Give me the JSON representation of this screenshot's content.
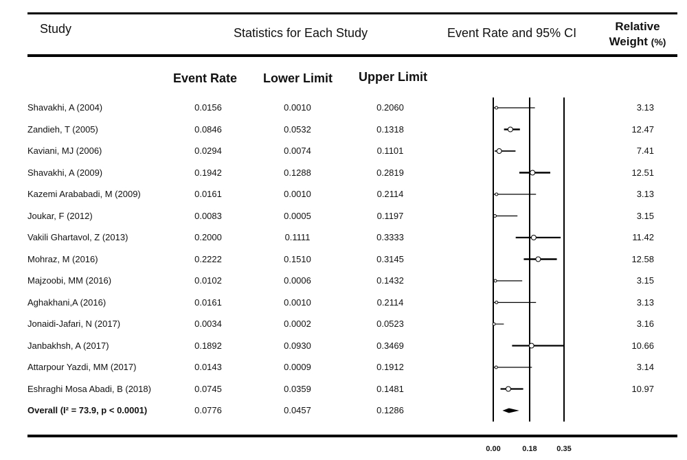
{
  "header": {
    "study": "Study",
    "stats": "Statistics for Each Study",
    "ci": "Event Rate and 95% CI",
    "weight_line1": "Relative",
    "weight_line2": "Weight",
    "weight_unit": "(%)"
  },
  "subheader": {
    "event_rate": "Event Rate",
    "lower_limit": "Lower Limit",
    "upper_limit": "Upper Limit"
  },
  "chart_data": {
    "type": "forest",
    "axis": {
      "xlim": [
        0,
        0.35
      ],
      "ticks": [
        "0.00",
        "0.18",
        "0.35"
      ],
      "tick_values": [
        0,
        0.18,
        0.35
      ],
      "reference_lines": [
        0,
        0.18,
        0.35
      ]
    },
    "studies": [
      {
        "study": "Shavakhi, A  (2004)",
        "event_rate": "0.0156",
        "lower": "0.0010",
        "upper": "0.2060",
        "weight": "3.13",
        "er": 0.0156,
        "lo": 0.001,
        "hi": 0.206
      },
      {
        "study": "Zandieh, T  (2005)",
        "event_rate": "0.0846",
        "lower": "0.0532",
        "upper": "0.1318",
        "weight": "12.47",
        "er": 0.0846,
        "lo": 0.0532,
        "hi": 0.1318
      },
      {
        "study": "Kaviani, MJ  (2006)",
        "event_rate": "0.0294",
        "lower": "0.0074",
        "upper": "0.1101",
        "weight": "7.41",
        "er": 0.0294,
        "lo": 0.0074,
        "hi": 0.1101
      },
      {
        "study": "Shavakhi, A  (2009)",
        "event_rate": "0.1942",
        "lower": "0.1288",
        "upper": "0.2819",
        "weight": "12.51",
        "er": 0.1942,
        "lo": 0.1288,
        "hi": 0.2819
      },
      {
        "study": "Kazemi Arababadi, M  (2009)",
        "event_rate": "0.0161",
        "lower": "0.0010",
        "upper": "0.2114",
        "weight": "3.13",
        "er": 0.0161,
        "lo": 0.001,
        "hi": 0.2114
      },
      {
        "study": "Joukar, F  (2012)",
        "event_rate": "0.0083",
        "lower": "0.0005",
        "upper": "0.1197",
        "weight": "3.15",
        "er": 0.0083,
        "lo": 0.0005,
        "hi": 0.1197
      },
      {
        "study": "Vakili Ghartavol, Z  (2013)",
        "event_rate": "0.2000",
        "lower": "0.1111",
        "upper": "0.3333",
        "weight": "11.42",
        "er": 0.2,
        "lo": 0.1111,
        "hi": 0.3333
      },
      {
        "study": "Mohraz, M  (2016)",
        "event_rate": "0.2222",
        "lower": "0.1510",
        "upper": "0.3145",
        "weight": "12.58",
        "er": 0.2222,
        "lo": 0.151,
        "hi": 0.3145
      },
      {
        "study": "Majzoobi, MM  (2016)",
        "event_rate": "0.0102",
        "lower": "0.0006",
        "upper": "0.1432",
        "weight": "3.15",
        "er": 0.0102,
        "lo": 0.0006,
        "hi": 0.1432
      },
      {
        "study": "Aghakhani,A  (2016)",
        "event_rate": "0.0161",
        "lower": "0.0010",
        "upper": "0.2114",
        "weight": "3.13",
        "er": 0.0161,
        "lo": 0.001,
        "hi": 0.2114
      },
      {
        "study": "Jonaidi-Jafari, N  (2017)",
        "event_rate": "0.0034",
        "lower": "0.0002",
        "upper": "0.0523",
        "weight": "3.16",
        "er": 0.0034,
        "lo": 0.0002,
        "hi": 0.0523
      },
      {
        "study": "Janbakhsh, A  (2017)",
        "event_rate": "0.1892",
        "lower": "0.0930",
        "upper": "0.3469",
        "weight": "10.66",
        "er": 0.1892,
        "lo": 0.093,
        "hi": 0.3469
      },
      {
        "study": "Attarpour Yazdi, MM  (2017)",
        "event_rate": "0.0143",
        "lower": "0.0009",
        "upper": "0.1912",
        "weight": "3.14",
        "er": 0.0143,
        "lo": 0.0009,
        "hi": 0.1912
      },
      {
        "study": "Eshraghi Mosa Abadi, B  (2018)",
        "event_rate": "0.0745",
        "lower": "0.0359",
        "upper": "0.1481",
        "weight": "10.97",
        "er": 0.0745,
        "lo": 0.0359,
        "hi": 0.1481
      }
    ],
    "overall": {
      "study": "Overall (I² = 73.9, p < 0.0001)",
      "event_rate": "0.0776",
      "lower": "0.0457",
      "upper": "0.1286",
      "er": 0.0776,
      "lo": 0.0457,
      "hi": 0.1286
    }
  }
}
